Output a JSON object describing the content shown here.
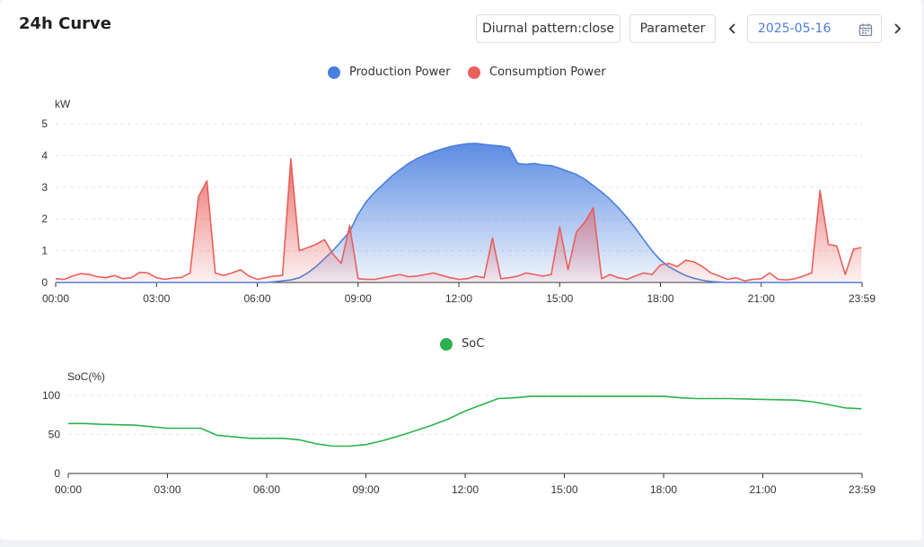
{
  "header": {
    "title": "24h Curve",
    "diurnal_btn": "Diurnal pattern:close",
    "parameter_btn": "Parameter",
    "date_value": "2025-05-16"
  },
  "chart_data": [
    {
      "type": "area",
      "ylabel": "kW",
      "ylim": [
        0,
        5
      ],
      "yticks": [
        "0",
        "1",
        "2",
        "3",
        "4",
        "5"
      ],
      "xticks": [
        "00:00",
        "03:00",
        "06:00",
        "09:00",
        "12:00",
        "15:00",
        "18:00",
        "21:00",
        "23:59"
      ],
      "xlim": [
        0,
        24
      ],
      "grid": true,
      "legend_position": "top-center",
      "x": [
        0,
        0.25,
        0.5,
        0.75,
        1,
        1.25,
        1.5,
        1.75,
        2,
        2.25,
        2.5,
        2.75,
        3,
        3.25,
        3.5,
        3.75,
        4,
        4.25,
        4.5,
        4.75,
        5,
        5.25,
        5.5,
        5.75,
        6,
        6.25,
        6.5,
        6.75,
        7,
        7.25,
        7.5,
        7.75,
        8,
        8.25,
        8.5,
        8.75,
        9,
        9.25,
        9.5,
        9.75,
        10,
        10.25,
        10.5,
        10.75,
        11,
        11.25,
        11.5,
        11.75,
        12,
        12.25,
        12.5,
        12.75,
        13,
        13.25,
        13.5,
        13.75,
        14,
        14.25,
        14.5,
        14.75,
        15,
        15.25,
        15.5,
        15.75,
        16,
        16.25,
        16.5,
        16.75,
        17,
        17.25,
        17.5,
        17.75,
        18,
        18.25,
        18.5,
        18.75,
        19,
        19.25,
        19.5,
        19.75,
        20,
        20.25,
        20.5,
        20.75,
        21,
        21.25,
        21.5,
        21.75,
        22,
        22.25,
        22.5,
        22.75,
        23,
        23.25,
        23.5,
        23.75,
        23.98
      ],
      "series": [
        {
          "name": "Production Power",
          "color": "#4a7fe0",
          "values": [
            0,
            0,
            0,
            0,
            0,
            0,
            0,
            0,
            0,
            0,
            0,
            0,
            0,
            0,
            0,
            0,
            0,
            0,
            0,
            0,
            0,
            0,
            0,
            0,
            0,
            0,
            0.02,
            0.05,
            0.08,
            0.15,
            0.3,
            0.5,
            0.75,
            1.0,
            1.3,
            1.6,
            2.15,
            2.55,
            2.85,
            3.1,
            3.35,
            3.55,
            3.75,
            3.9,
            4.02,
            4.12,
            4.2,
            4.28,
            4.33,
            4.37,
            4.38,
            4.35,
            4.32,
            4.3,
            4.25,
            3.75,
            3.72,
            3.75,
            3.7,
            3.68,
            3.6,
            3.5,
            3.4,
            3.25,
            3.05,
            2.85,
            2.62,
            2.35,
            2.05,
            1.72,
            1.35,
            1.0,
            0.7,
            0.5,
            0.35,
            0.22,
            0.13,
            0.07,
            0.03,
            0.01,
            0,
            0,
            0,
            0,
            0,
            0,
            0,
            0,
            0,
            0,
            0,
            0,
            0,
            0,
            0,
            0,
            0
          ]
        },
        {
          "name": "Consumption Power",
          "color": "#e8605c",
          "values": [
            0.12,
            0.1,
            0.2,
            0.28,
            0.25,
            0.18,
            0.15,
            0.22,
            0.12,
            0.15,
            0.32,
            0.3,
            0.15,
            0.1,
            0.14,
            0.16,
            0.3,
            2.7,
            3.2,
            0.3,
            0.22,
            0.3,
            0.4,
            0.2,
            0.1,
            0.15,
            0.2,
            0.22,
            3.9,
            1.0,
            1.1,
            1.2,
            1.35,
            0.9,
            0.6,
            1.8,
            0.12,
            0.1,
            0.1,
            0.15,
            0.2,
            0.25,
            0.18,
            0.2,
            0.25,
            0.3,
            0.22,
            0.15,
            0.1,
            0.12,
            0.2,
            0.15,
            1.4,
            0.12,
            0.15,
            0.2,
            0.3,
            0.25,
            0.2,
            0.25,
            1.75,
            0.4,
            1.6,
            1.9,
            2.35,
            0.12,
            0.25,
            0.15,
            0.1,
            0.2,
            0.3,
            0.25,
            0.55,
            0.6,
            0.5,
            0.7,
            0.65,
            0.5,
            0.3,
            0.2,
            0.1,
            0.15,
            0.05,
            0.1,
            0.12,
            0.3,
            0.1,
            0.08,
            0.12,
            0.2,
            0.3,
            2.9,
            1.2,
            1.15,
            0.25,
            1.05,
            1.1
          ]
        }
      ]
    },
    {
      "type": "line",
      "ylabel": "SoC(%)",
      "ylim": [
        0,
        100
      ],
      "yticks": [
        "0",
        "50",
        "100"
      ],
      "xticks": [
        "00:00",
        "03:00",
        "06:00",
        "09:00",
        "12:00",
        "15:00",
        "18:00",
        "21:00",
        "23:59"
      ],
      "xlim": [
        0,
        24
      ],
      "grid": true,
      "legend_position": "top-center",
      "series": [
        {
          "name": "SoC",
          "color": "#2bb24c",
          "x": [
            0,
            0.5,
            1,
            2,
            3,
            4,
            4.5,
            5,
            5.5,
            6,
            6.5,
            7,
            7.5,
            8,
            8.5,
            9,
            9.5,
            10,
            10.5,
            11,
            11.5,
            12,
            12.5,
            13,
            13.5,
            14,
            15,
            16,
            17,
            18,
            18.5,
            19,
            20,
            21,
            22,
            22.5,
            23,
            23.5,
            23.98
          ],
          "values": [
            64,
            64,
            63,
            62,
            58,
            58,
            49,
            47,
            45,
            45,
            45,
            43,
            38,
            35,
            35,
            37,
            42,
            48,
            55,
            62,
            70,
            80,
            88,
            96,
            97,
            99,
            99,
            99,
            99,
            99,
            97,
            96,
            96,
            95,
            94,
            92,
            88,
            84,
            83
          ]
        }
      ]
    }
  ]
}
